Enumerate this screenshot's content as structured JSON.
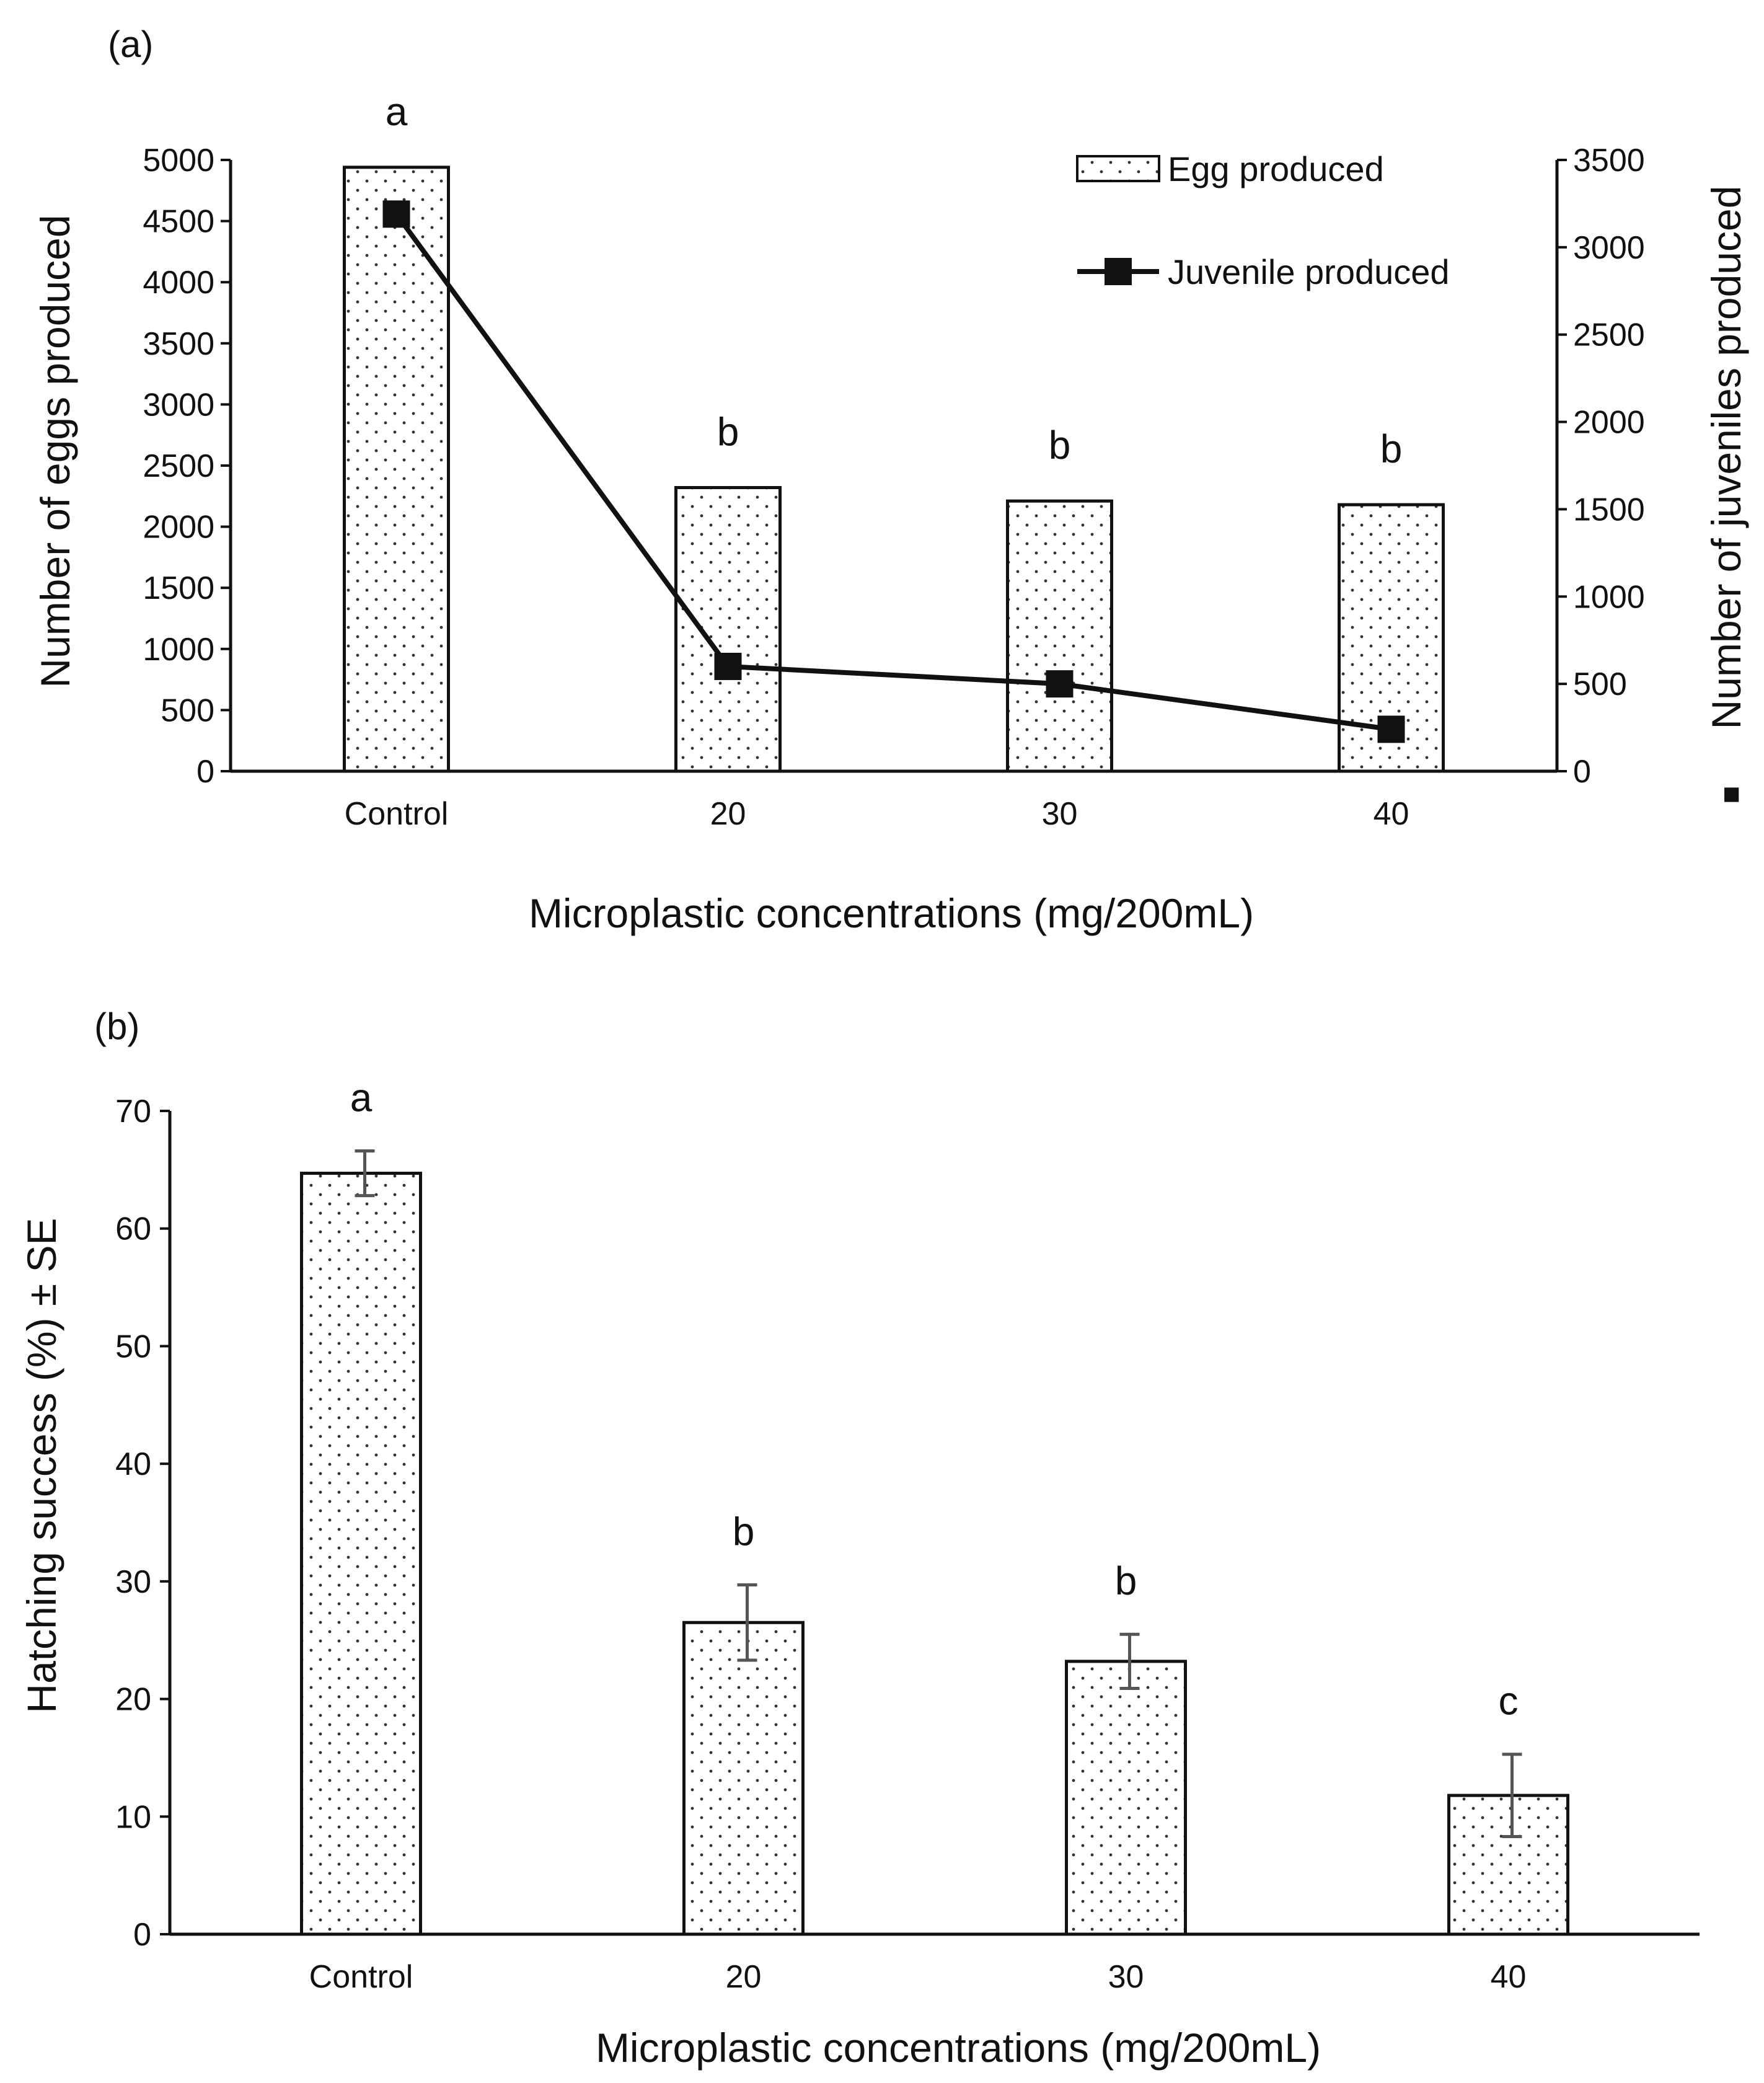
{
  "chart_data": [
    {
      "panel": "(a)",
      "type": "bar",
      "categories": [
        "Control",
        "20",
        "30",
        "40"
      ],
      "xlabel": "Microplastic concentrations (mg/200mL)",
      "ylabel": "Number of eggs produced",
      "y2label": "Number of juveniles produced",
      "y2label_marker": "■",
      "ylim": [
        0,
        5000
      ],
      "yticks": [
        0,
        500,
        1000,
        1500,
        2000,
        2500,
        3000,
        3500,
        4000,
        4500,
        5000
      ],
      "y2lim": [
        0,
        3500
      ],
      "y2ticks": [
        0,
        500,
        1000,
        1500,
        2000,
        2500,
        3000,
        3500
      ],
      "legend_position": "top-right",
      "series": [
        {
          "name": "Egg produced",
          "kind": "bar",
          "axis": "left",
          "values": [
            4940,
            2320,
            2210,
            2180
          ]
        },
        {
          "name": "Juvenile produced",
          "kind": "line",
          "axis": "right",
          "values": [
            3190,
            600,
            500,
            240
          ]
        }
      ],
      "significance_letters": [
        "a",
        "b",
        "b",
        "b"
      ]
    },
    {
      "panel": "(b)",
      "type": "bar",
      "categories": [
        "Control",
        "20",
        "30",
        "40"
      ],
      "xlabel": "Microplastic concentrations (mg/200mL)",
      "ylabel": "Hatching success (%) ± SE",
      "ylim": [
        0,
        70
      ],
      "yticks": [
        0,
        10,
        20,
        30,
        40,
        50,
        60,
        70
      ],
      "series": [
        {
          "name": "Hatching success",
          "values": [
            64.7,
            26.5,
            23.2,
            11.8
          ],
          "se": [
            1.9,
            3.2,
            2.3,
            3.5
          ]
        }
      ],
      "significance_letters": [
        "a",
        "b",
        "b",
        "c"
      ]
    }
  ],
  "colors": {
    "axis": "#111111",
    "bar_fill": "#ffffff",
    "bar_dots": "#333333",
    "line": "#111111",
    "error_bar": "#555555"
  }
}
